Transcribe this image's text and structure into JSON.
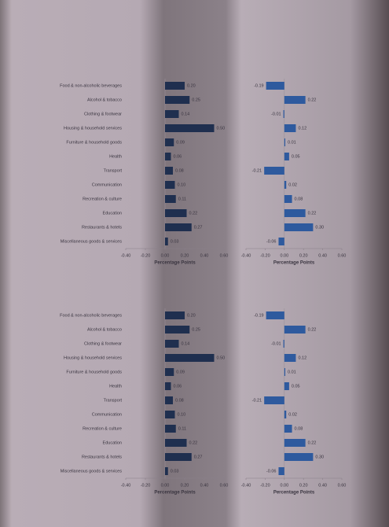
{
  "chart_data": [
    {
      "type": "bar",
      "orientation": "horizontal",
      "color": "#1f2f4f",
      "categories": [
        "Food & non-alcoholic beverages",
        "Alcohol & tobacco",
        "Clothing & footwear",
        "Housing & household services",
        "Furniture & household goods",
        "Health",
        "Transport",
        "Communication",
        "Recreation & culture",
        "Education",
        "Restaurants & hotels",
        "Miscellaneous goods & services"
      ],
      "values": [
        0.2,
        0.25,
        0.14,
        0.5,
        0.09,
        0.06,
        0.08,
        0.1,
        0.11,
        0.22,
        0.27,
        0.03
      ],
      "value_labels": [
        "0.20",
        "0.25",
        "0.14",
        "0.50",
        "0.09",
        "0.06",
        "0.08",
        "0.10",
        "0.11",
        "0.22",
        "0.27",
        "0.03"
      ],
      "x_label": "Percentage Points",
      "xlim": [
        -0.4,
        0.6
      ],
      "xticks": [
        {
          "value": -0.4,
          "label": "-0.40"
        },
        {
          "value": -0.2,
          "label": "-0.20"
        },
        {
          "value": 0,
          "label": "0.00"
        },
        {
          "value": 0.2,
          "label": "0.20"
        },
        {
          "value": 0.4,
          "label": "0.40"
        },
        {
          "value": 0.6,
          "label": "0.60"
        }
      ]
    },
    {
      "type": "bar",
      "orientation": "horizontal",
      "color": "#2e5a9e",
      "values": [
        -0.19,
        0.22,
        -0.01,
        0.12,
        0.01,
        0.05,
        -0.21,
        0.02,
        0.08,
        0.22,
        0.3,
        -0.06
      ],
      "value_labels": [
        "-0.19",
        "0.22",
        "-0.01",
        "0.12",
        "0.01",
        "0.05",
        "-0.21",
        "0.02",
        "0.08",
        "0.22",
        "0.30",
        "-0.06"
      ],
      "x_label": "Percentage Points",
      "xlim": [
        -0.4,
        0.6
      ],
      "xticks": [
        {
          "value": -0.4,
          "label": "-0.40"
        },
        {
          "value": -0.2,
          "label": "-0.20"
        },
        {
          "value": 0,
          "label": "0.00"
        },
        {
          "value": 0.2,
          "label": "0.20"
        },
        {
          "value": 0.4,
          "label": "0.40"
        },
        {
          "value": 0.6,
          "label": "0.60"
        }
      ]
    },
    {
      "type": "bar",
      "orientation": "horizontal",
      "color": "#1f2f4f",
      "categories": [
        "Food & non-alcoholic beverages",
        "Alcohol & tobacco",
        "Clothing & footwear",
        "Housing & household services",
        "Furniture & household goods",
        "Health",
        "Transport",
        "Communication",
        "Recreation & culture",
        "Education",
        "Restaurants & hotels",
        "Miscellaneous goods & services"
      ],
      "values": [
        0.2,
        0.25,
        0.14,
        0.5,
        0.09,
        0.06,
        0.08,
        0.1,
        0.11,
        0.22,
        0.27,
        0.03
      ],
      "value_labels": [
        "0.20",
        "0.25",
        "0.14",
        "0.50",
        "0.09",
        "0.06",
        "0.08",
        "0.10",
        "0.11",
        "0.22",
        "0.27",
        "0.03"
      ],
      "x_label": "Percentage Points",
      "xlim": [
        -0.4,
        0.6
      ],
      "xticks": [
        {
          "value": -0.4,
          "label": "-0.40"
        },
        {
          "value": -0.2,
          "label": "-0.20"
        },
        {
          "value": 0,
          "label": "0.00"
        },
        {
          "value": 0.2,
          "label": "0.20"
        },
        {
          "value": 0.4,
          "label": "0.40"
        },
        {
          "value": 0.6,
          "label": "0.60"
        }
      ]
    },
    {
      "type": "bar",
      "orientation": "horizontal",
      "color": "#2e5a9e",
      "values": [
        -0.19,
        0.22,
        -0.01,
        0.12,
        0.01,
        0.05,
        -0.21,
        0.02,
        0.08,
        0.22,
        0.3,
        -0.06
      ],
      "value_labels": [
        "-0.19",
        "0.22",
        "-0.01",
        "0.12",
        "0.01",
        "0.05",
        "-0.21",
        "0.02",
        "0.08",
        "0.22",
        "0.30",
        "-0.06"
      ],
      "x_label": "Percentage Points",
      "xlim": [
        -0.4,
        0.6
      ],
      "xticks": [
        {
          "value": -0.4,
          "label": "-0.40"
        },
        {
          "value": -0.2,
          "label": "-0.20"
        },
        {
          "value": 0,
          "label": "0.00"
        },
        {
          "value": 0.2,
          "label": "0.20"
        },
        {
          "value": 0.4,
          "label": "0.40"
        },
        {
          "value": 0.6,
          "label": "0.60"
        }
      ]
    }
  ]
}
